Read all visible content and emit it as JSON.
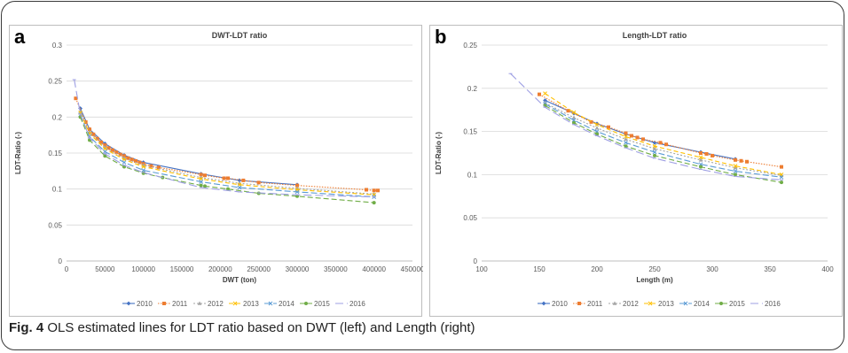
{
  "caption": {
    "label": "Fig. 4",
    "text": " OLS estimated lines for LDT ratio based on DWT (left) and Length (right)"
  },
  "series_colors": {
    "2010": "#4472c4",
    "2011": "#ed7d31",
    "2012": "#a5a5a5",
    "2013": "#ffc000",
    "2014": "#5b9bd5",
    "2015": "#70ad47",
    "2016": "#9e9fe3"
  },
  "chart_data": [
    {
      "panel_label": "a",
      "type": "line",
      "title": "DWT-LDT ratio",
      "xlabel": "DWT (ton)",
      "ylabel": "LDT-Ratio (-)",
      "xlim": [
        0,
        450000
      ],
      "ylim": [
        0,
        0.3
      ],
      "xticks": [
        0,
        50000,
        100000,
        150000,
        200000,
        250000,
        300000,
        350000,
        400000,
        450000
      ],
      "yticks": [
        0,
        0.05,
        0.1,
        0.15,
        0.2,
        0.25,
        0.3
      ],
      "grid": true,
      "legend": "bottom",
      "series": [
        {
          "name": "2010",
          "x": [
            18000,
            30000,
            50000,
            75000,
            100000,
            175000,
            225000,
            300000
          ],
          "y": [
            0.212,
            0.183,
            0.163,
            0.147,
            0.137,
            0.121,
            0.112,
            0.106
          ]
        },
        {
          "name": "2011",
          "x": [
            12000,
            25000,
            30000,
            35000,
            40000,
            45000,
            50000,
            55000,
            60000,
            65000,
            70000,
            75000,
            80000,
            85000,
            90000,
            95000,
            100000,
            110000,
            120000,
            175000,
            180000,
            205000,
            210000,
            230000,
            250000,
            300000,
            390000,
            400000,
            405000
          ],
          "y": [
            0.226,
            0.193,
            0.183,
            0.176,
            0.17,
            0.165,
            0.161,
            0.157,
            0.154,
            0.151,
            0.148,
            0.146,
            0.143,
            0.141,
            0.139,
            0.137,
            0.135,
            0.132,
            0.13,
            0.12,
            0.119,
            0.115,
            0.115,
            0.112,
            0.109,
            0.105,
            0.099,
            0.098,
            0.098
          ]
        },
        {
          "name": "2012",
          "x": [
            18000,
            30000,
            50000,
            75000,
            100000,
            175000,
            225000,
            300000,
            400000
          ],
          "y": [
            0.208,
            0.179,
            0.158,
            0.143,
            0.133,
            0.116,
            0.108,
            0.101,
            0.093
          ]
        },
        {
          "name": "2013",
          "x": [
            18000,
            30000,
            50000,
            75000,
            100000,
            175000,
            225000,
            300000,
            400000
          ],
          "y": [
            0.206,
            0.177,
            0.156,
            0.141,
            0.131,
            0.114,
            0.106,
            0.099,
            0.092
          ]
        },
        {
          "name": "2014",
          "x": [
            18000,
            30000,
            50000,
            75000,
            100000,
            175000,
            225000,
            300000,
            400000
          ],
          "y": [
            0.203,
            0.173,
            0.152,
            0.137,
            0.126,
            0.11,
            0.102,
            0.096,
            0.089
          ]
        },
        {
          "name": "2015",
          "x": [
            18000,
            30000,
            50000,
            75000,
            100000,
            125000,
            175000,
            180000,
            210000,
            250000,
            300000,
            400000
          ],
          "y": [
            0.2,
            0.168,
            0.146,
            0.131,
            0.122,
            0.116,
            0.105,
            0.104,
            0.1,
            0.094,
            0.09,
            0.081
          ]
        },
        {
          "name": "2016",
          "x": [
            10000,
            18000,
            30000,
            50000,
            75000,
            100000,
            175000,
            225000,
            300000,
            400000
          ],
          "y": [
            0.252,
            0.204,
            0.171,
            0.149,
            0.133,
            0.123,
            0.102,
            0.096,
            0.092,
            0.089
          ]
        }
      ]
    },
    {
      "panel_label": "b",
      "type": "line",
      "title": "Length-LDT ratio",
      "xlabel": "Length (m)",
      "ylabel": "LDT-Ratio (-)",
      "xlim": [
        100,
        400
      ],
      "ylim": [
        0,
        0.25
      ],
      "xticks": [
        100,
        150,
        200,
        250,
        300,
        350,
        400
      ],
      "yticks": [
        0,
        0.05,
        0.1,
        0.15,
        0.2,
        0.25
      ],
      "grid": true,
      "legend": "bottom",
      "series": [
        {
          "name": "2010",
          "x": [
            155,
            180,
            200,
            225,
            250,
            290,
            320
          ],
          "y": [
            0.186,
            0.171,
            0.159,
            0.147,
            0.137,
            0.126,
            0.118
          ]
        },
        {
          "name": "2011",
          "x": [
            150,
            175,
            195,
            210,
            225,
            230,
            235,
            240,
            255,
            260,
            290,
            295,
            300,
            320,
            325,
            330,
            360
          ],
          "y": [
            0.193,
            0.174,
            0.161,
            0.155,
            0.148,
            0.145,
            0.143,
            0.141,
            0.137,
            0.135,
            0.125,
            0.124,
            0.122,
            0.117,
            0.116,
            0.115,
            0.109
          ]
        },
        {
          "name": "2012",
          "x": [
            155,
            180,
            200,
            225,
            250,
            290,
            320,
            360
          ],
          "y": [
            0.183,
            0.166,
            0.154,
            0.141,
            0.13,
            0.117,
            0.108,
            0.099
          ]
        },
        {
          "name": "2013",
          "x": [
            155,
            180,
            200,
            225,
            250,
            290,
            320,
            360
          ],
          "y": [
            0.194,
            0.172,
            0.158,
            0.144,
            0.133,
            0.12,
            0.11,
            0.1
          ]
        },
        {
          "name": "2014",
          "x": [
            155,
            180,
            200,
            225,
            250,
            290,
            320,
            360
          ],
          "y": [
            0.182,
            0.163,
            0.15,
            0.137,
            0.126,
            0.112,
            0.104,
            0.097
          ]
        },
        {
          "name": "2015",
          "x": [
            155,
            180,
            200,
            225,
            250,
            290,
            320,
            360
          ],
          "y": [
            0.18,
            0.16,
            0.147,
            0.133,
            0.122,
            0.109,
            0.1,
            0.091
          ]
        },
        {
          "name": "2016",
          "x": [
            125,
            155,
            180,
            200,
            225,
            250,
            290,
            320,
            360
          ],
          "y": [
            0.217,
            0.178,
            0.158,
            0.145,
            0.131,
            0.119,
            0.106,
            0.098,
            0.094
          ]
        }
      ]
    }
  ]
}
